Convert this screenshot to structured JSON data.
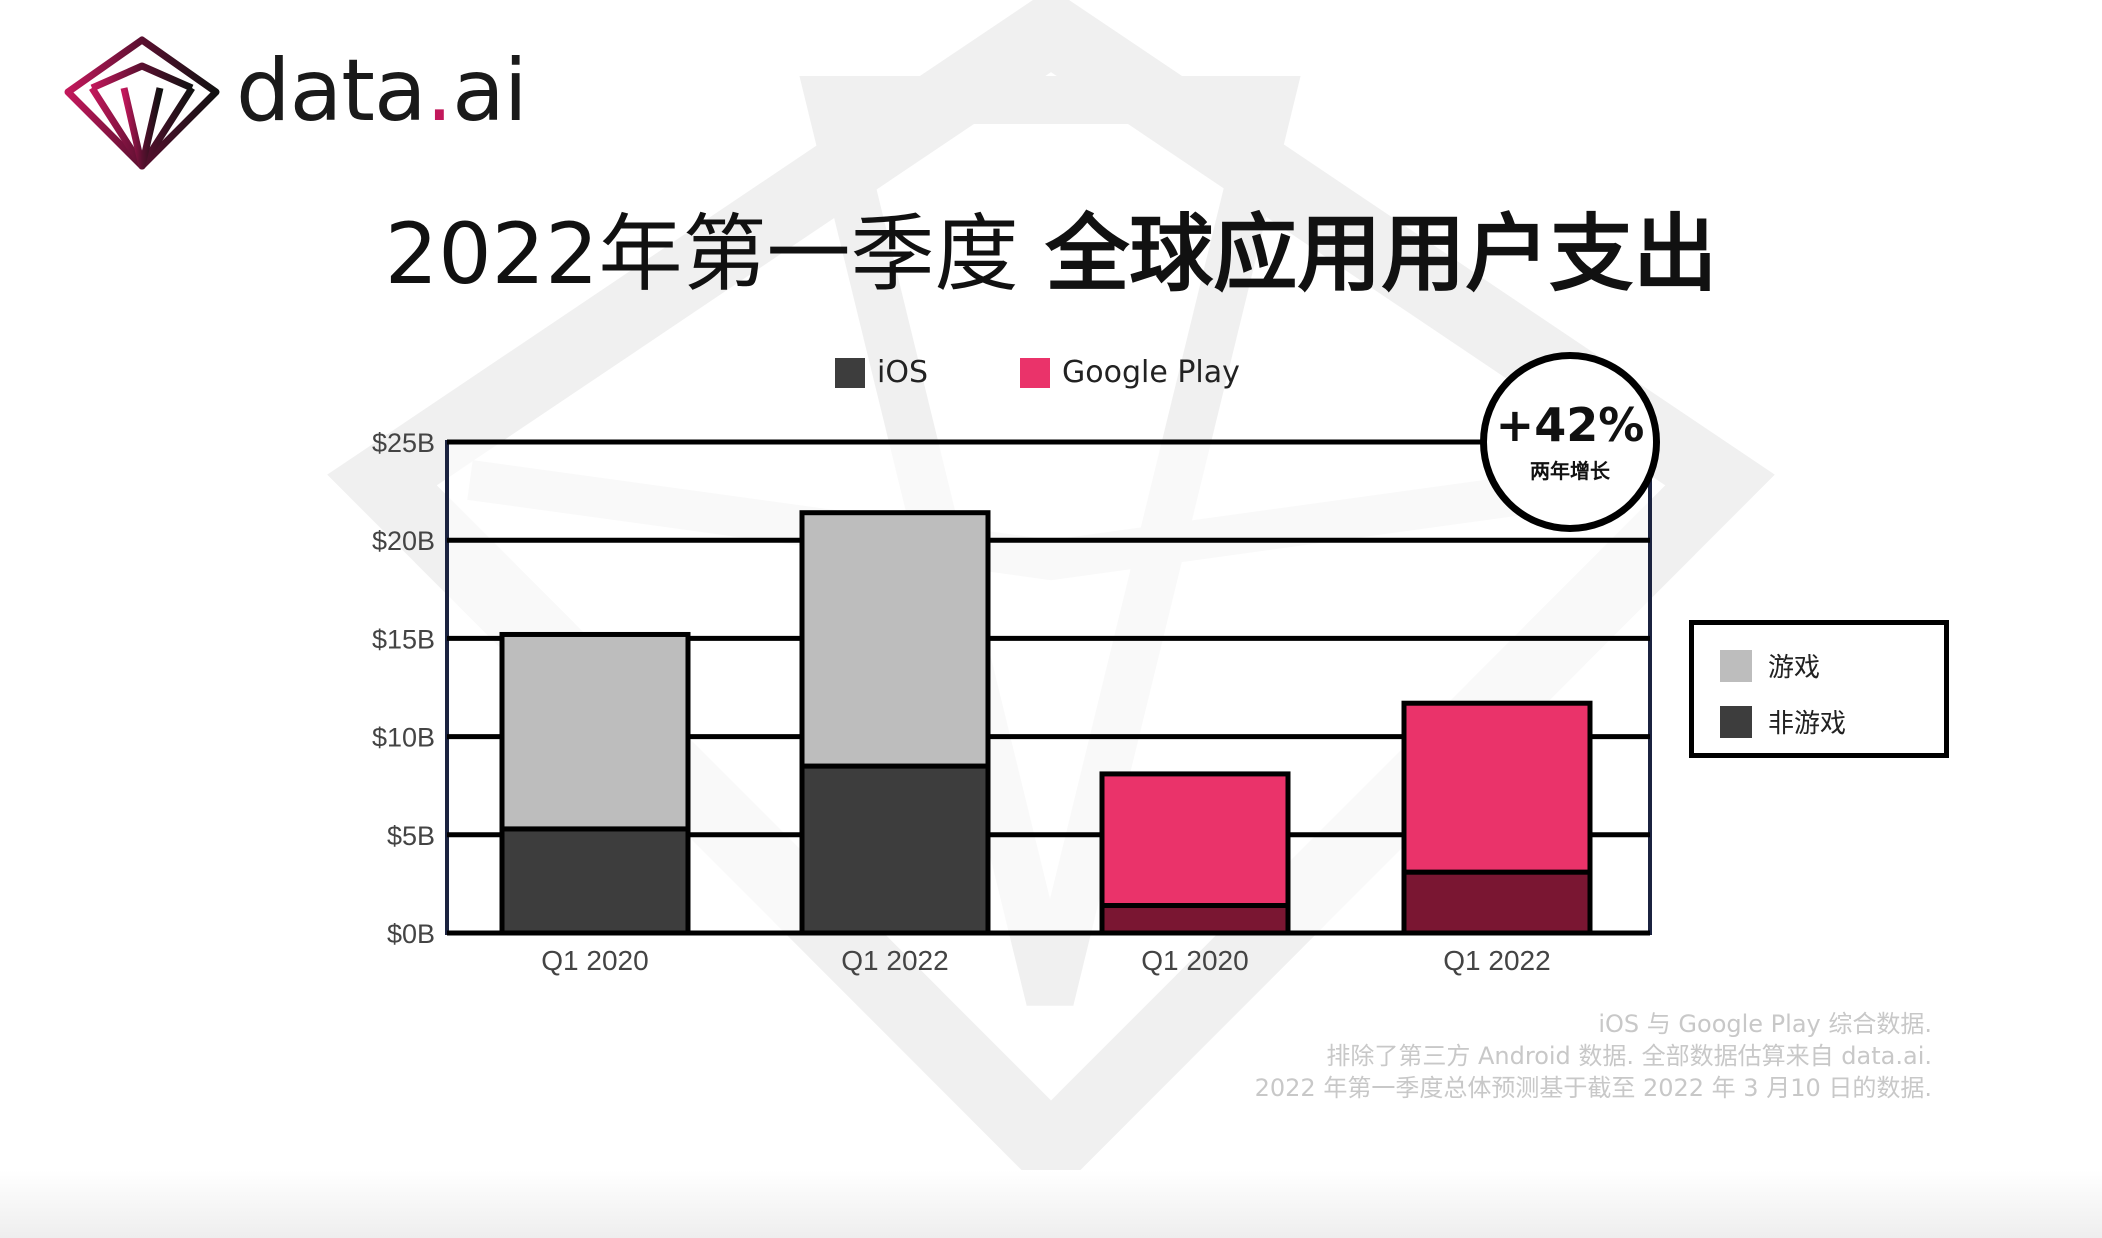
{
  "brand": {
    "name_main": "data",
    "name_dot": ".",
    "name_end": "ai",
    "logo_icon": "diamond-logo-icon",
    "accent_color": "#c2185b"
  },
  "title": {
    "regular": "2022年第一季度",
    "bold": "全球应用用户支出"
  },
  "badge": {
    "value": "+42%",
    "label": "两年增长"
  },
  "type_legend": [
    {
      "label": "游戏",
      "color": "#bdbdbd"
    },
    {
      "label": "非游戏",
      "color": "#3d3d3d"
    }
  ],
  "footnotes": [
    "iOS 与 Google Play 综合数据.",
    "排除了第三方 Android 数据. 全部数据估算来自 data.ai.",
    "2022 年第一季度总体预测基于截至 2022 年 3 月10 日的数据."
  ],
  "chart_data": {
    "type": "bar",
    "stacked": true,
    "title": "2022年第一季度 全球应用用户支出",
    "categories": [
      "Q1 2020",
      "Q1 2022",
      "Q1 2020",
      "Q1 2022"
    ],
    "platform_groups": [
      {
        "name": "iOS",
        "color": "#3d3d3d",
        "categories": [
          0,
          1
        ]
      },
      {
        "name": "Google Play",
        "color": "#ea336a",
        "categories": [
          2,
          3
        ]
      }
    ],
    "series": [
      {
        "name": "非游戏",
        "values": [
          5.3,
          8.5,
          1.4,
          3.1
        ],
        "colors": [
          "#3d3d3d",
          "#3d3d3d",
          "#7a1632",
          "#7a1632"
        ]
      },
      {
        "name": "游戏",
        "values": [
          9.9,
          12.9,
          6.7,
          8.6
        ],
        "colors": [
          "#bdbdbd",
          "#bdbdbd",
          "#ea336a",
          "#ea336a"
        ]
      }
    ],
    "totals": [
      15.2,
      21.4,
      8.1,
      11.7
    ],
    "ylim": [
      0,
      25
    ],
    "yticks": [
      0,
      5,
      10,
      15,
      20,
      25
    ],
    "ytick_labels": [
      "$0B",
      "$5B",
      "$10B",
      "$15B",
      "$20B",
      "$25B"
    ],
    "grid": true,
    "legend_position": "top"
  }
}
